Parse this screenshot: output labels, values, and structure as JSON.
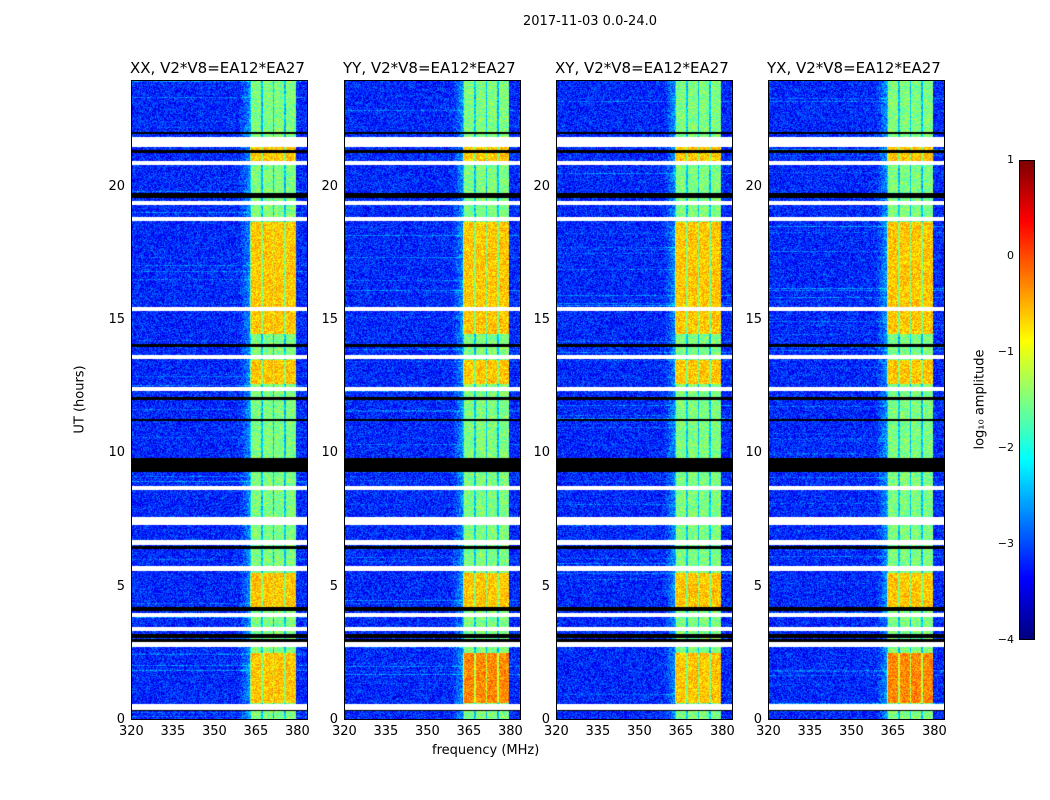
{
  "chart_data": {
    "type": "heatmap",
    "title": "2017-11-03 0.0-24.0",
    "xlabel": "frequency (MHz)",
    "ylabel": "UT (hours)",
    "xlim": [
      320,
      384
    ],
    "ylim": [
      0,
      24
    ],
    "xticks": [
      "320",
      "335",
      "350",
      "365",
      "380"
    ],
    "yticks": [
      "0",
      "5",
      "10",
      "15",
      "20"
    ],
    "panels": [
      {
        "title": "XX, V2*V8=EA12*EA27"
      },
      {
        "title": "YY, V2*V8=EA12*EA27"
      },
      {
        "title": "XY, V2*V8=EA12*EA27"
      },
      {
        "title": "YX, V2*V8=EA12*EA27"
      }
    ],
    "colorbar": {
      "label": "log₁₀ amplitude",
      "range": [
        -4,
        1
      ],
      "ticks": [
        "1",
        "0",
        "−1",
        "−2",
        "−3",
        "−4"
      ],
      "colormap": "jet"
    },
    "bright_band_mhz": [
      363,
      380
    ],
    "background_level": -3.2,
    "band_level": -1.5,
    "flagged_hours_white": [
      [
        0.35,
        0.55
      ],
      [
        2.7,
        2.9
      ],
      [
        3.3,
        3.45
      ],
      [
        3.85,
        4.0
      ],
      [
        5.55,
        5.75
      ],
      [
        6.55,
        6.75
      ],
      [
        7.3,
        7.6
      ],
      [
        8.6,
        8.75
      ],
      [
        12.35,
        12.5
      ],
      [
        13.55,
        13.7
      ],
      [
        15.35,
        15.5
      ],
      [
        18.75,
        18.9
      ],
      [
        19.35,
        19.5
      ],
      [
        20.85,
        21.0
      ],
      [
        21.5,
        21.9
      ]
    ],
    "flagged_hours_black": [
      [
        0.3,
        0.35
      ],
      [
        2.9,
        3.0
      ],
      [
        3.05,
        3.2
      ],
      [
        4.05,
        4.2
      ],
      [
        6.4,
        6.5
      ],
      [
        9.3,
        9.8
      ],
      [
        11.2,
        11.3
      ],
      [
        12.0,
        12.1
      ],
      [
        14.0,
        14.1
      ],
      [
        19.6,
        19.8
      ],
      [
        21.3,
        21.4
      ],
      [
        22.0,
        22.1
      ]
    ]
  }
}
